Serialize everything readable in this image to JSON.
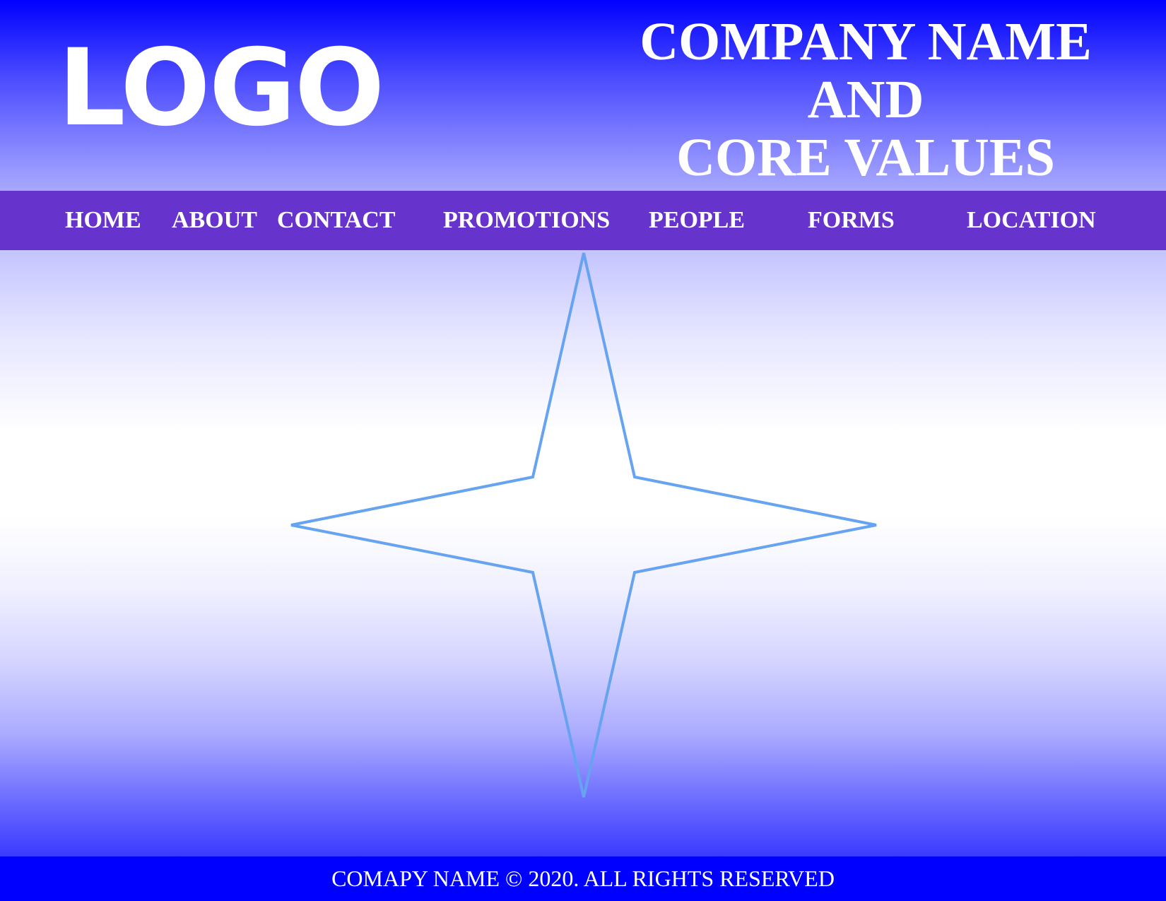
{
  "header": {
    "logo_text": "LOGO",
    "title_lines": [
      "COMPANY NAME",
      "AND",
      "CORE VALUES"
    ]
  },
  "nav": {
    "items": [
      {
        "label": "HOME"
      },
      {
        "label": "ABOUT"
      },
      {
        "label": "CONTACT"
      },
      {
        "label": "PROMOTIONS"
      },
      {
        "label": "PEOPLE"
      },
      {
        "label": "FORMS"
      },
      {
        "label": "LOCATION"
      }
    ]
  },
  "main": {
    "hero_icon": "four-point-star-icon",
    "star_stroke_color": "#66a3f0"
  },
  "footer": {
    "text": "COMAPY NAME © 2020. ALL RIGHTS RESERVED"
  },
  "colors": {
    "header_top": "#0000ff",
    "nav_background": "#6633cc",
    "footer_background": "#0000ff",
    "text": "#ffffff"
  }
}
